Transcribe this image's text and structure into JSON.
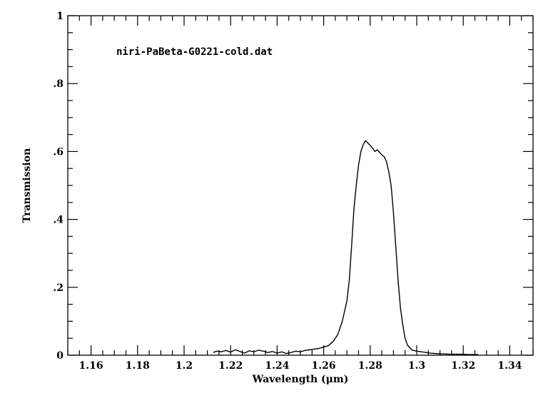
{
  "chart_data": {
    "type": "line",
    "annotation": "niri-PaBeta-G0221-cold.dat",
    "xlabel": "Wavelength (μm)",
    "ylabel": "Transmission",
    "xlim": [
      1.15,
      1.35
    ],
    "ylim": [
      0,
      1
    ],
    "x_ticks": [
      1.16,
      1.18,
      1.2,
      1.22,
      1.24,
      1.26,
      1.28,
      1.3,
      1.32,
      1.34
    ],
    "x_tick_labels": [
      "1.16",
      "1.18",
      "1.2",
      "1.22",
      "1.24",
      "1.26",
      "1.28",
      "1.3",
      "1.32",
      "1.34"
    ],
    "y_ticks": [
      0,
      0.2,
      0.4,
      0.6,
      0.8,
      1
    ],
    "y_tick_labels": [
      "0",
      ".2",
      ".4",
      ".6",
      ".8",
      "1"
    ],
    "x_minor_step": 0.005,
    "y_minor_step": 0.05,
    "grid": false,
    "series": [
      {
        "color": "#000000",
        "x": [
          1.2125,
          1.214,
          1.216,
          1.218,
          1.22,
          1.222,
          1.224,
          1.226,
          1.228,
          1.23,
          1.232,
          1.234,
          1.236,
          1.238,
          1.24,
          1.242,
          1.244,
          1.246,
          1.248,
          1.25,
          1.252,
          1.254,
          1.256,
          1.258,
          1.26,
          1.262,
          1.264,
          1.266,
          1.268,
          1.27,
          1.271,
          1.272,
          1.273,
          1.274,
          1.275,
          1.276,
          1.277,
          1.278,
          1.279,
          1.28,
          1.281,
          1.282,
          1.283,
          1.284,
          1.285,
          1.286,
          1.287,
          1.288,
          1.289,
          1.29,
          1.291,
          1.292,
          1.293,
          1.294,
          1.295,
          1.296,
          1.298,
          1.3,
          1.302,
          1.304,
          1.306,
          1.308,
          1.31,
          1.312,
          1.314,
          1.316,
          1.318,
          1.32,
          1.322,
          1.324,
          1.3265
        ],
        "y": [
          0.008,
          0.012,
          0.01,
          0.014,
          0.009,
          0.016,
          0.011,
          0.006,
          0.013,
          0.01,
          0.015,
          0.012,
          0.008,
          0.011,
          0.006,
          0.01,
          0.005,
          0.008,
          0.012,
          0.01,
          0.014,
          0.016,
          0.018,
          0.02,
          0.024,
          0.028,
          0.04,
          0.06,
          0.1,
          0.16,
          0.22,
          0.32,
          0.43,
          0.5,
          0.56,
          0.6,
          0.62,
          0.632,
          0.625,
          0.618,
          0.61,
          0.6,
          0.605,
          0.598,
          0.59,
          0.585,
          0.57,
          0.54,
          0.5,
          0.42,
          0.32,
          0.22,
          0.14,
          0.09,
          0.05,
          0.03,
          0.015,
          0.012,
          0.01,
          0.008,
          0.006,
          0.005,
          0.004,
          0.004,
          0.003,
          0.003,
          0.003,
          0.003,
          0.002,
          0.002,
          0.002
        ]
      }
    ]
  }
}
